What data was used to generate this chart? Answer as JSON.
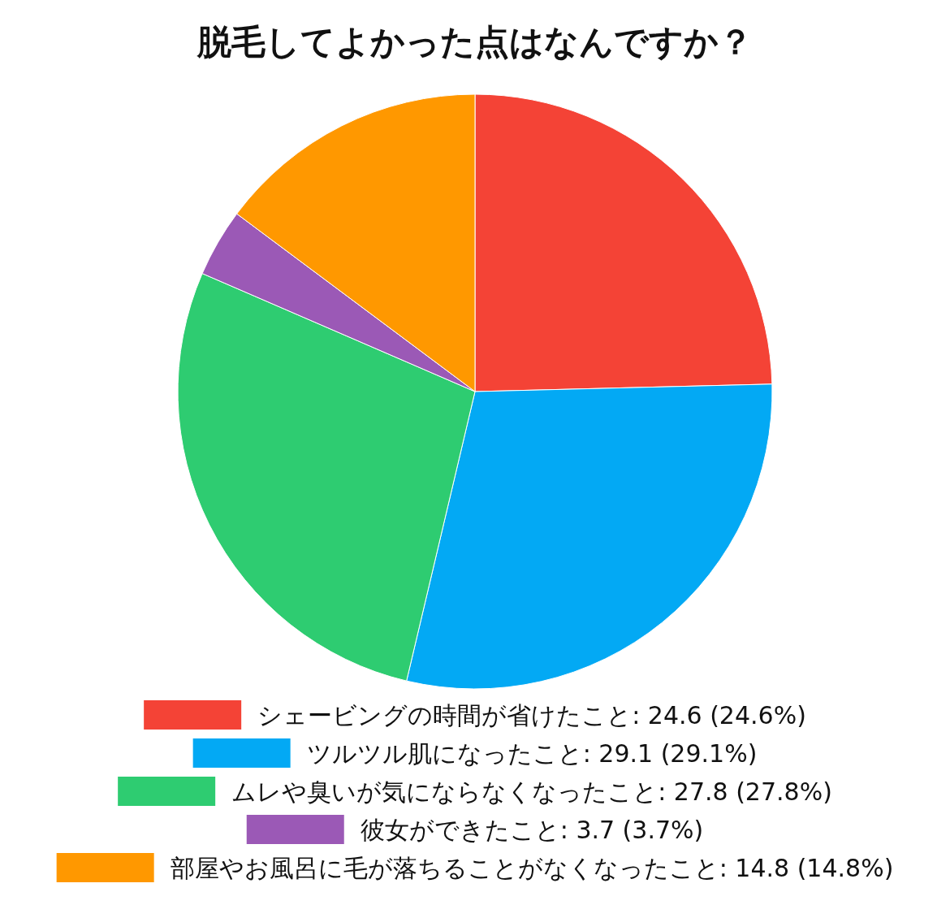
{
  "chart_data": {
    "type": "pie",
    "title": "脱毛してよかった点はなんですか？",
    "categories": [
      "シェービングの時間が省けたこと: 24.6 (24.6%)",
      "ツルツル肌になったこと: 29.1 (29.1%)",
      "ムレや臭いが気にならなくなったこと: 27.8 (27.8%)",
      "彼女ができたこと: 3.7 (3.7%)",
      "部屋やお風呂に毛が落ちることがなくなったこと: 14.8 (14.8%)"
    ],
    "values": [
      24.6,
      29.1,
      27.8,
      3.7,
      14.8
    ],
    "colors": [
      "#f44336",
      "#03a9f4",
      "#2ecc71",
      "#9b59b6",
      "#ff9800"
    ],
    "legend": "bottom"
  }
}
